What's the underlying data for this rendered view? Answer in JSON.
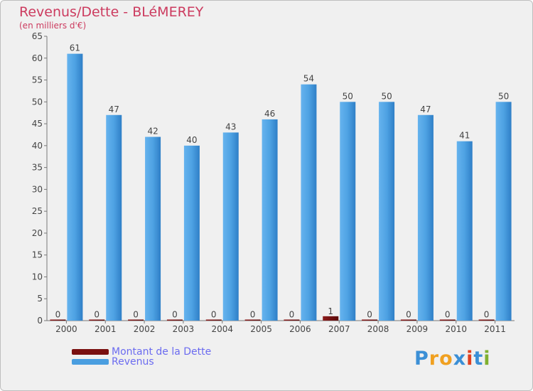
{
  "title": "Revenus/Dette - BLéMEREY",
  "subtitle": "(en milliers d'€)",
  "colors": {
    "title": "#cc3b5f",
    "dette": "#7a1010",
    "revenus": "#4a9ee0",
    "legend_text": "#6b6bf0",
    "background": "#f0f0f0"
  },
  "legend": [
    {
      "label": "Montant de la Dette",
      "color": "#7a1010"
    },
    {
      "label": "Revenus",
      "color": "#4a9ee0"
    }
  ],
  "logo": {
    "text": "Proxiti",
    "letter_colors": [
      "#3b8fd6",
      "#f0a020",
      "#f0a020",
      "#3b8fd6",
      "#e04020",
      "#3b8fd6",
      "#80b030"
    ]
  },
  "chart_data": {
    "type": "bar",
    "title": "Revenus/Dette - BLéMEREY",
    "subtitle": "(en milliers d'€)",
    "categories": [
      "2000",
      "2001",
      "2002",
      "2003",
      "2004",
      "2005",
      "2006",
      "2007",
      "2008",
      "2009",
      "2010",
      "2011"
    ],
    "series": [
      {
        "name": "Montant de la Dette",
        "values": [
          0,
          0,
          0,
          0,
          0,
          0,
          0,
          1,
          0,
          0,
          0,
          0
        ]
      },
      {
        "name": "Revenus",
        "values": [
          61,
          47,
          42,
          40,
          43,
          46,
          54,
          50,
          50,
          47,
          41,
          50
        ]
      }
    ],
    "ylim": [
      0,
      65
    ],
    "yticks": [
      0,
      5,
      10,
      15,
      20,
      25,
      30,
      35,
      40,
      45,
      50,
      55,
      60,
      65
    ],
    "grid": false,
    "legend_position": "bottom-left"
  }
}
